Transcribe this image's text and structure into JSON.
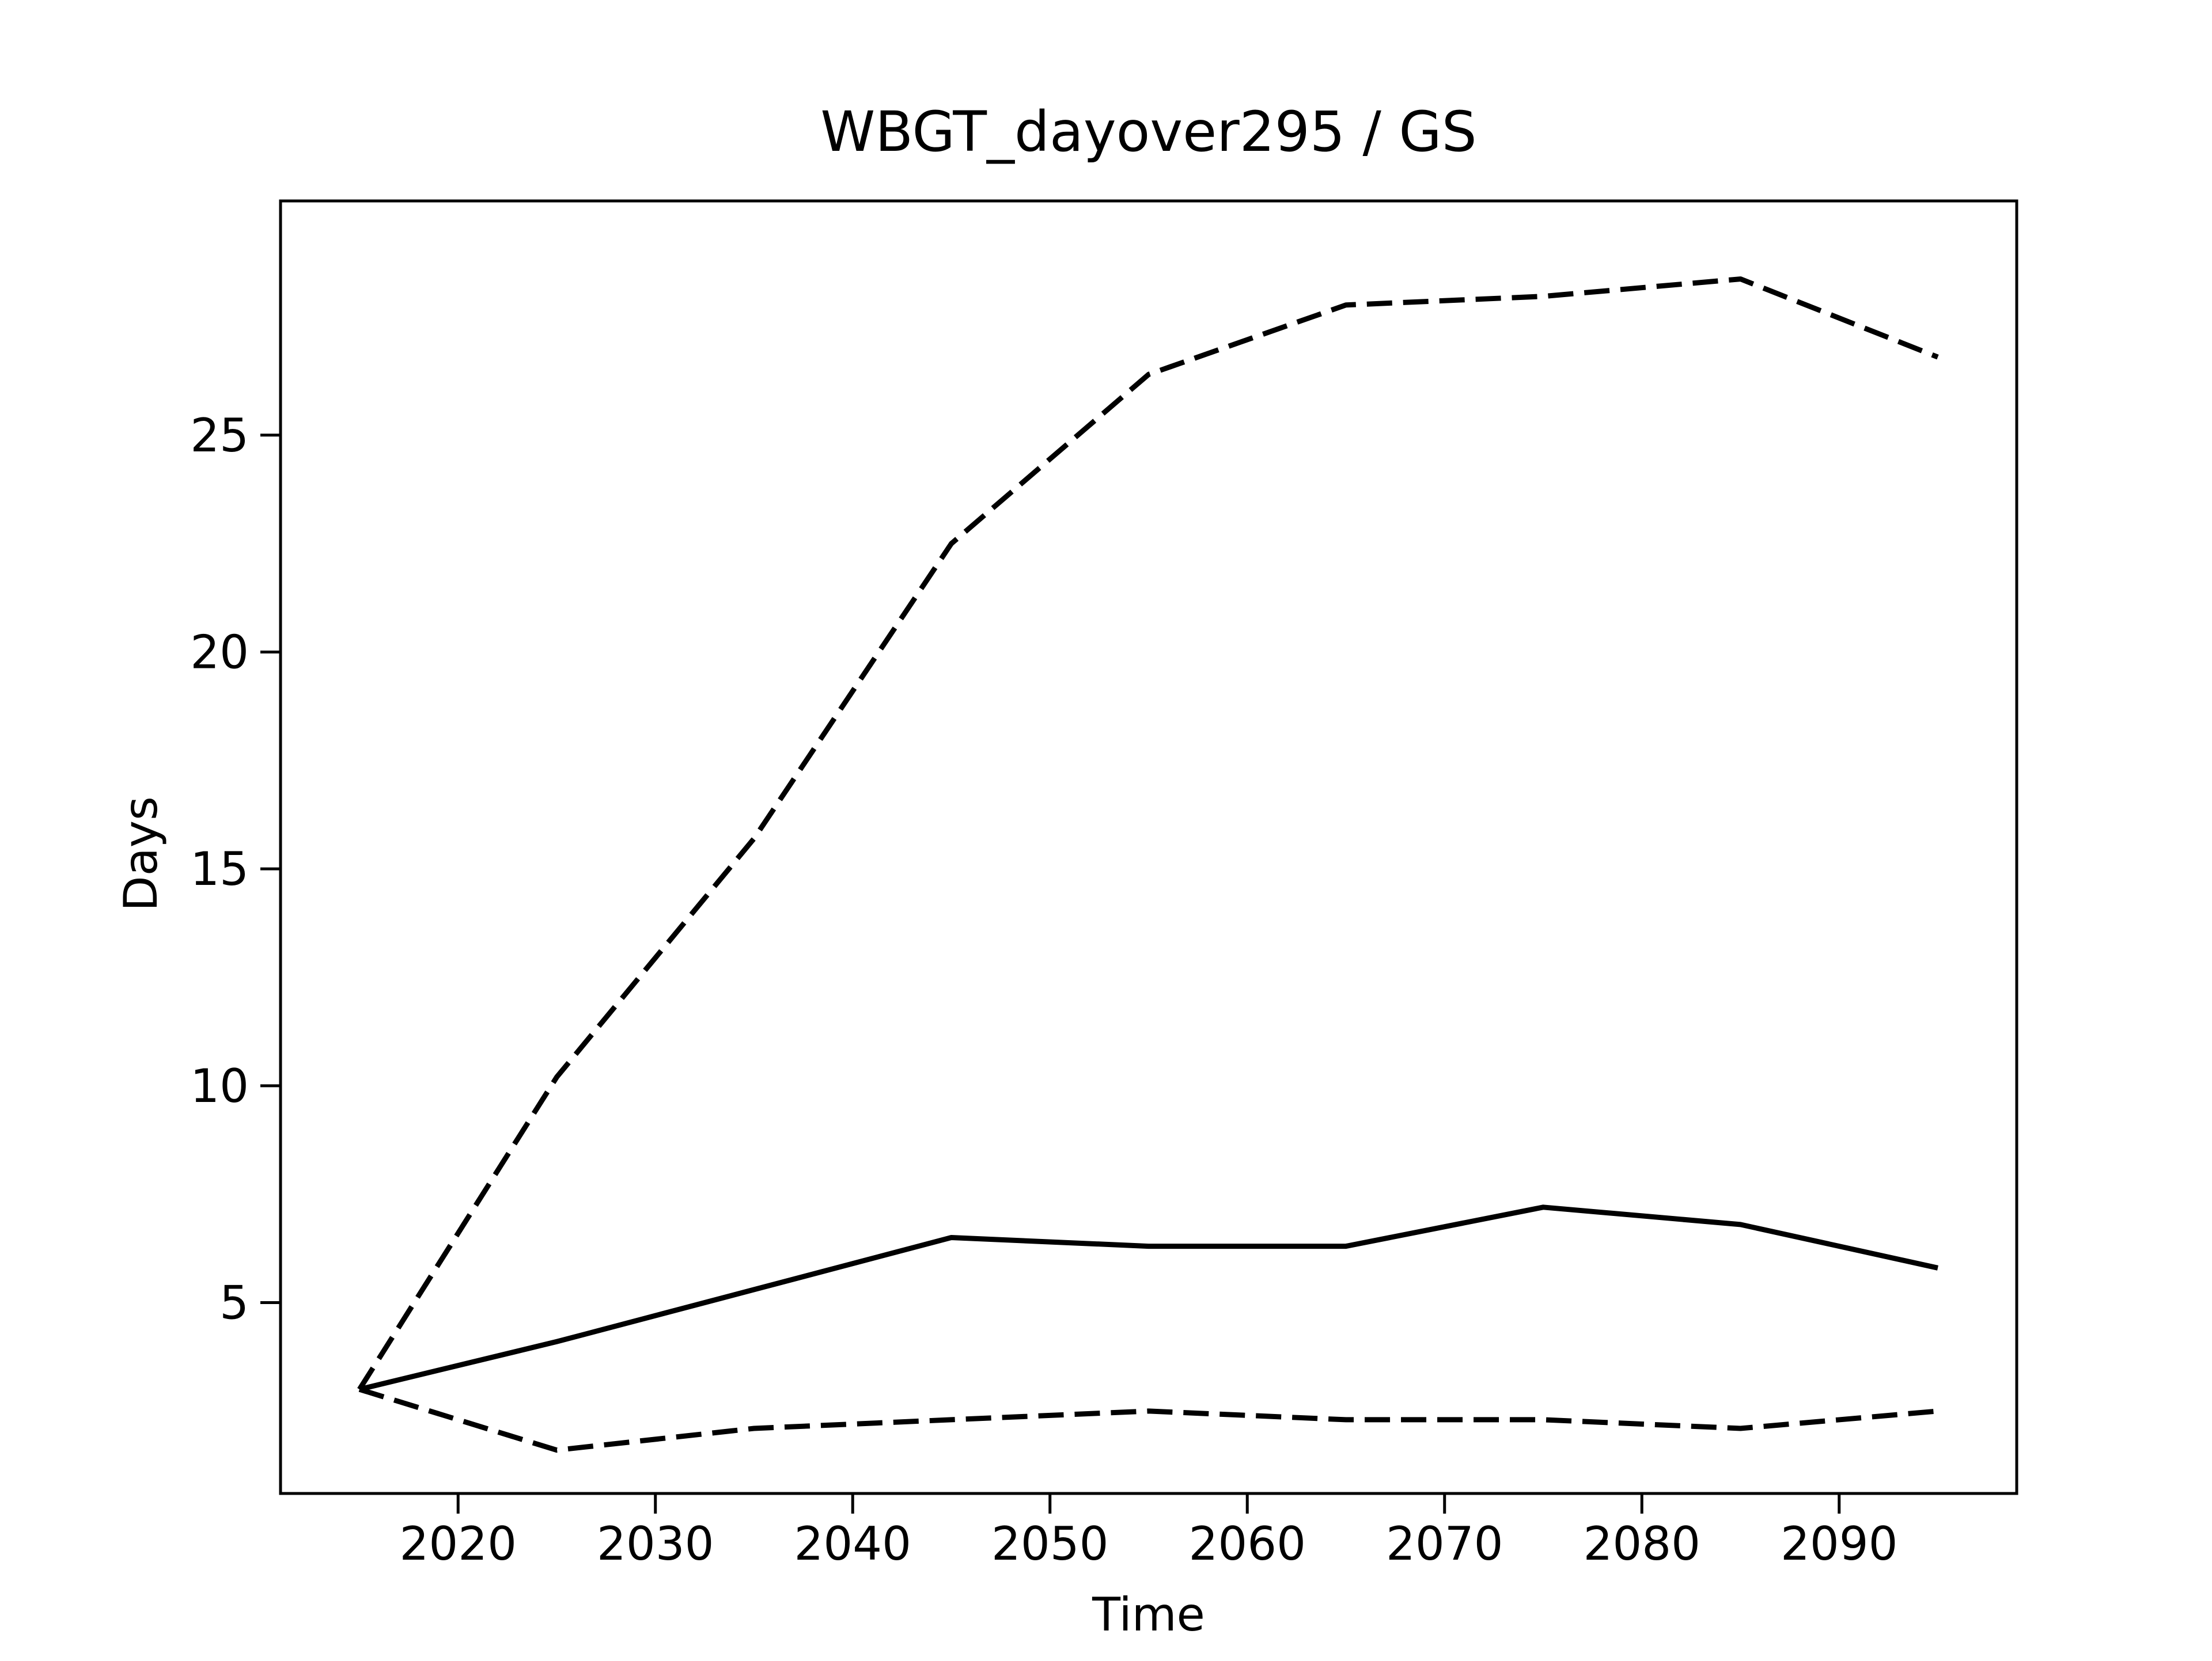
{
  "chart_data": {
    "type": "line",
    "title": "WBGT_dayover295 / GS",
    "xlabel": "Time",
    "ylabel": "Days",
    "x": [
      2015,
      2025,
      2035,
      2045,
      2055,
      2065,
      2075,
      2085,
      2095
    ],
    "xlim": [
      2011,
      2099
    ],
    "ylim": [
      0.6,
      30.4
    ],
    "xticks": [
      2020,
      2030,
      2040,
      2050,
      2060,
      2070,
      2080,
      2090
    ],
    "yticks": [
      5,
      10,
      15,
      20,
      25
    ],
    "grid": false,
    "legend": "none",
    "series": [
      {
        "style": "dashed",
        "color": "#000000",
        "values": [
          3.0,
          10.2,
          15.7,
          22.5,
          26.4,
          28.0,
          28.2,
          28.6,
          26.8
        ]
      },
      {
        "style": "solid",
        "color": "#000000",
        "values": [
          3.0,
          4.1,
          5.3,
          6.5,
          6.3,
          6.3,
          7.2,
          6.8,
          5.8
        ]
      },
      {
        "style": "dashed",
        "color": "#000000",
        "values": [
          3.0,
          1.6,
          2.1,
          2.3,
          2.5,
          2.3,
          2.3,
          2.1,
          2.5
        ]
      }
    ]
  }
}
